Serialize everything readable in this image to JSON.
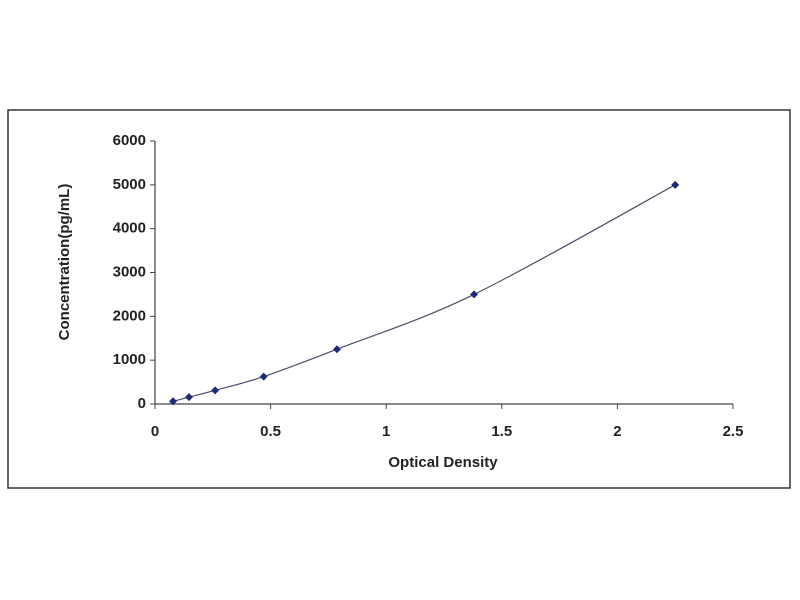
{
  "chart_data": {
    "type": "scatter",
    "x_label": "Optical Density",
    "y_label": "Concentration(pg/mL)",
    "x": [
      0.078,
      0.147,
      0.26,
      0.47,
      0.787,
      1.38,
      2.25
    ],
    "series": [
      {
        "color": "#1f2a7a",
        "values": [
          62,
          156,
          312,
          625,
          1250,
          2500,
          5000
        ]
      }
    ],
    "xlim": [
      0,
      2.5
    ],
    "xticks": [
      0,
      0.5,
      1,
      1.5,
      2,
      2.5
    ],
    "ylim": [
      0,
      6000
    ],
    "yticks": [
      0,
      1000,
      2000,
      3000,
      4000,
      5000,
      6000
    ],
    "grid": false,
    "line": true
  }
}
